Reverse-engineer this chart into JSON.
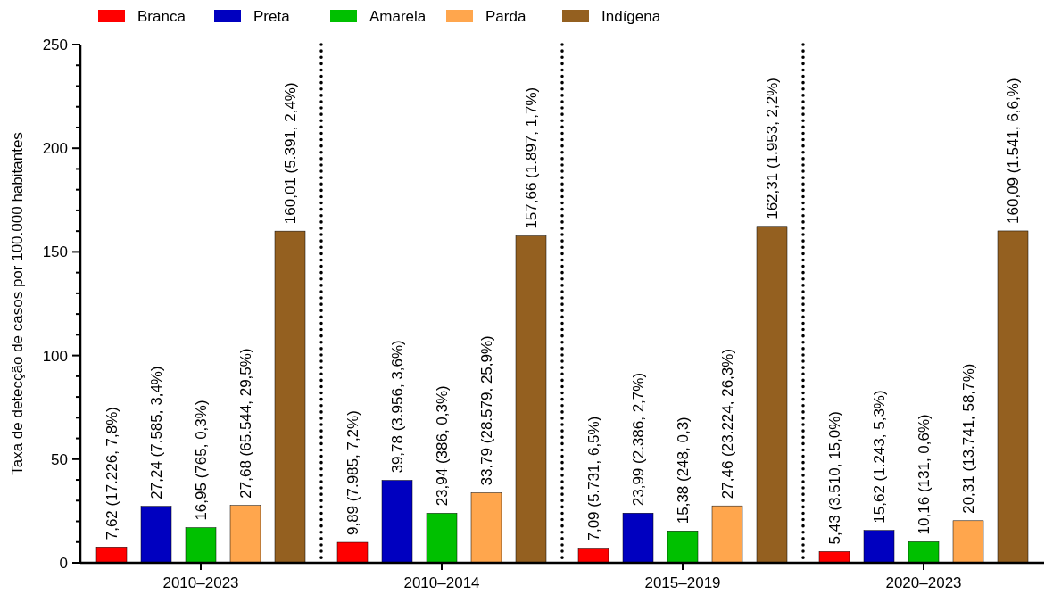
{
  "chart_data": {
    "type": "bar",
    "ylabel": "Taxa de detecção de casos por 100.000 habitantes",
    "categories": [
      "2010–2023",
      "2010–2014",
      "2015–2019",
      "2020–2023"
    ],
    "series": [
      {
        "name": "Branca",
        "color": "#ff0000",
        "values": [
          7.62,
          9.89,
          7.09,
          5.43
        ],
        "value_labels": [
          "7,62 (17.226, 7,8%)",
          "9,89 (7.985, 7,2%)",
          "7,09 (5.731, 6,5%)",
          "5,43 (3.510, 15,0%)"
        ]
      },
      {
        "name": "Preta",
        "color": "#0000c0",
        "values": [
          27.24,
          39.78,
          23.99,
          15.62
        ],
        "value_labels": [
          "27,24 (7.585, 3,4%)",
          "39,78 (3.956, 3,6%)",
          "23,99 (2.386, 2,7%)",
          "15,62 (1.243, 5,3%)"
        ]
      },
      {
        "name": "Amarela",
        "color": "#00c000",
        "values": [
          16.95,
          23.94,
          15.38,
          10.16
        ],
        "value_labels": [
          "16,95 (765, 0,3%)",
          "23,94 (386, 0,3%)",
          "15,38 (248, 0,3)",
          "10,16 (131, 0,6%)"
        ]
      },
      {
        "name": "Parda",
        "color": "#ffa64d",
        "values": [
          27.68,
          33.79,
          27.46,
          20.31
        ],
        "value_labels": [
          "27,68 (65.544, 29,5%)",
          "33,79 (28.579, 25,9%)",
          "27,46 (23.224, 26,3%)",
          "20,31 (13.741, 58,7%)"
        ]
      },
      {
        "name": "Indígena",
        "color": "#946020",
        "values": [
          160.01,
          157.66,
          162.31,
          160.09
        ],
        "value_labels": [
          "160,01 (5.391, 2,4%)",
          "157,66 (1.897, 1,7%)",
          "162,31 (1.953, 2,2%)",
          "160,09 (1.541, 6,6,%)"
        ]
      }
    ],
    "ylim": [
      0,
      250
    ],
    "yticks": [
      0,
      {
        "value": 10,
        "label": null
      },
      {
        "value": 20,
        "label": null
      },
      {
        "value": 30,
        "label": null
      },
      {
        "value": 40,
        "label": null
      },
      50,
      {
        "value": 60,
        "label": null
      },
      {
        "value": 70,
        "label": null
      },
      {
        "value": 80,
        "label": null
      },
      {
        "value": 90,
        "label": null
      },
      100,
      {
        "value": 110,
        "label": null
      },
      {
        "value": 120,
        "label": null
      },
      {
        "value": 130,
        "label": null
      },
      {
        "value": 140,
        "label": null
      },
      150,
      {
        "value": 160,
        "label": null
      },
      {
        "value": 170,
        "label": null
      },
      {
        "value": 180,
        "label": null
      },
      {
        "value": 190,
        "label": null
      },
      200,
      {
        "value": 210,
        "label": null
      },
      {
        "value": 220,
        "label": null
      },
      {
        "value": 230,
        "label": null
      },
      {
        "value": 240,
        "label": null
      },
      250
    ],
    "grid": false,
    "legend": "top"
  }
}
